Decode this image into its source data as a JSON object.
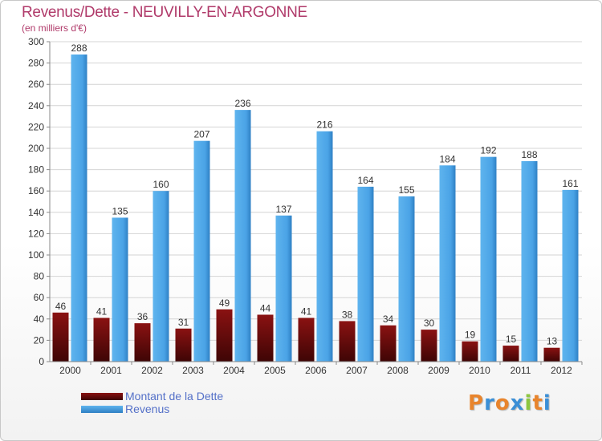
{
  "chart_data": {
    "type": "bar",
    "title": "Revenus/Dette - NEUVILLY-EN-ARGONNE",
    "subtitle": "(en milliers d'€)",
    "categories": [
      "2000",
      "2001",
      "2002",
      "2003",
      "2004",
      "2005",
      "2006",
      "2007",
      "2008",
      "2009",
      "2010",
      "2011",
      "2012"
    ],
    "series": [
      {
        "name": "Montant de la Dette",
        "color": "#8b0e0e",
        "values": [
          46,
          41,
          36,
          31,
          49,
          44,
          41,
          38,
          34,
          30,
          19,
          15,
          13
        ]
      },
      {
        "name": "Revenus",
        "color": "#4aa3e6",
        "values": [
          288,
          135,
          160,
          207,
          236,
          137,
          216,
          164,
          155,
          184,
          192,
          188,
          161
        ]
      }
    ],
    "ylim": [
      0,
      300
    ],
    "yticks": [
      0,
      20,
      40,
      60,
      80,
      100,
      120,
      140,
      160,
      180,
      200,
      220,
      240,
      260,
      280,
      300
    ],
    "grid": true,
    "legend_position": "bottom-left"
  },
  "logo": {
    "letters": [
      "P",
      "r",
      "o",
      "x",
      "i",
      "t",
      "i"
    ],
    "colors": [
      "#e8842c",
      "#3b8fd6",
      "#e8842c",
      "#3b8fd6",
      "#8cc63f",
      "#e8842c",
      "#3b8fd6"
    ]
  }
}
